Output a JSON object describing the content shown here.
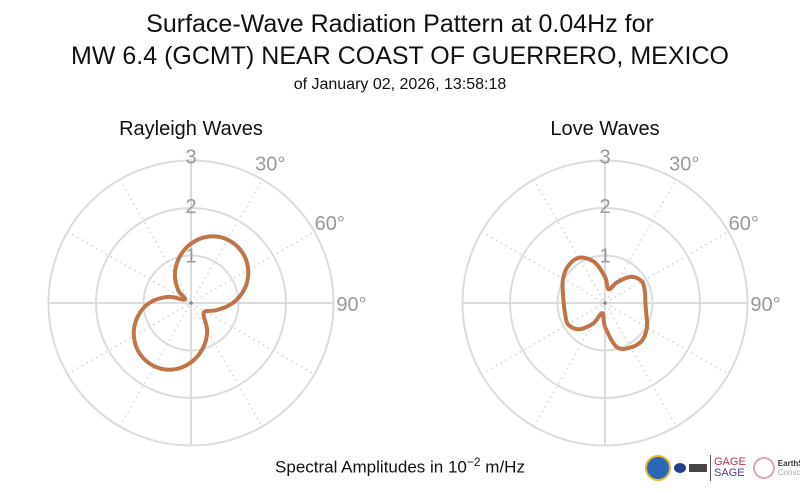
{
  "title_line1": "Surface-Wave Radiation Pattern at 0.04Hz for",
  "title_line2": "MW 6.4 (GCMT) NEAR COAST OF GUERRERO, MEXICO",
  "subtitle": "of January 02, 2026, 13:58:18",
  "footer": {
    "prefix": "Spectral Amplitudes in 10",
    "exponent": "−2",
    "suffix": " m/Hz"
  },
  "logos": {
    "gage": "GAGE",
    "sage": "SAGE",
    "earthscope": "EarthScope",
    "consortium": "Consortium"
  },
  "colors": {
    "line": "#c0744a",
    "grid": "#dddddd",
    "label": "#999999"
  },
  "chart_data": [
    {
      "type": "polar-line",
      "title": "Rayleigh Waves",
      "r_ticks": [
        "1",
        "2",
        "3"
      ],
      "rlim": [
        0,
        3
      ],
      "angle_ticks": [
        "30°",
        "60°",
        "90°"
      ],
      "azimuth_deg": [
        0,
        15,
        30,
        45,
        60,
        75,
        90,
        105,
        120,
        135,
        150,
        165,
        180,
        195,
        210,
        225,
        240,
        255,
        270,
        285,
        300,
        315,
        330,
        345
      ],
      "amplitude": [
        1.25,
        1.45,
        1.54,
        1.52,
        1.39,
        1.17,
        0.88,
        0.57,
        0.35,
        0.38,
        0.68,
        0.98,
        1.25,
        1.45,
        1.54,
        1.52,
        1.39,
        1.17,
        0.88,
        0.5,
        0.15,
        0.38,
        0.68,
        0.98
      ]
    },
    {
      "type": "polar-line",
      "title": "Love Waves",
      "r_ticks": [
        "1",
        "2",
        "3"
      ],
      "rlim": [
        0,
        3
      ],
      "angle_ticks": [
        "30°",
        "60°",
        "90°"
      ],
      "azimuth_deg": [
        0,
        15,
        30,
        45,
        60,
        75,
        90,
        105,
        120,
        135,
        150,
        165,
        180,
        195,
        210,
        225,
        240,
        255,
        270,
        285,
        300,
        315,
        330,
        345
      ],
      "amplitude": [
        0.55,
        0.3,
        0.5,
        0.78,
        0.9,
        0.87,
        0.85,
        0.9,
        1.02,
        1.11,
        1.08,
        0.96,
        0.5,
        0.22,
        0.5,
        0.78,
        0.9,
        0.87,
        0.87,
        0.92,
        1.02,
        1.1,
        1.1,
        0.9
      ]
    }
  ]
}
